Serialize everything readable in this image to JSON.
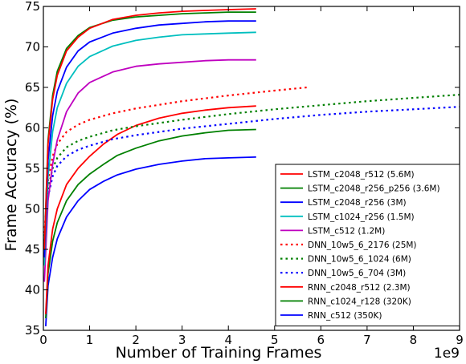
{
  "chart_data": {
    "type": "line",
    "title": "",
    "xlabel": "Number of Training Frames",
    "ylabel": "Frame Accuracy (%)",
    "x_multiplier_label": "1e9",
    "xlim": [
      0,
      9
    ],
    "ylim": [
      35,
      75
    ],
    "x_ticks": [
      0,
      1,
      2,
      3,
      4,
      5,
      6,
      7,
      8,
      9
    ],
    "y_ticks": [
      35,
      40,
      45,
      50,
      55,
      60,
      65,
      70,
      75
    ],
    "grid": false,
    "legend_position": "lower-right",
    "series": [
      {
        "name": "LSTM_c2048_r512 (5.6M)",
        "color": "#ff0000",
        "style": "solid",
        "x": [
          0.02,
          0.1,
          0.2,
          0.3,
          0.5,
          0.75,
          1.0,
          1.5,
          2.0,
          2.5,
          3.0,
          3.5,
          4.0,
          4.6
        ],
        "y": [
          45,
          58,
          63.5,
          66.5,
          69.5,
          71.2,
          72.3,
          73.4,
          73.9,
          74.2,
          74.4,
          74.5,
          74.6,
          74.7
        ]
      },
      {
        "name": "LSTM_c2048_r256_p256 (3.6M)",
        "color": "#008000",
        "style": "solid",
        "x": [
          0.02,
          0.1,
          0.2,
          0.3,
          0.5,
          0.75,
          1.0,
          1.5,
          2.0,
          2.5,
          3.0,
          3.5,
          4.0,
          4.6
        ],
        "y": [
          45,
          58.5,
          64,
          67,
          69.8,
          71.4,
          72.4,
          73.3,
          73.7,
          73.9,
          74.1,
          74.2,
          74.3,
          74.3
        ]
      },
      {
        "name": "LSTM_c2048_r256 (3M)",
        "color": "#0000ff",
        "style": "solid",
        "x": [
          0.02,
          0.1,
          0.2,
          0.3,
          0.5,
          0.75,
          1.0,
          1.5,
          2.0,
          2.5,
          3.0,
          3.5,
          4.0,
          4.6
        ],
        "y": [
          44,
          56,
          61.5,
          64.5,
          67.5,
          69.5,
          70.6,
          71.7,
          72.3,
          72.7,
          72.9,
          73.1,
          73.2,
          73.2
        ]
      },
      {
        "name": "LSTM_c1024_r256 (1.5M)",
        "color": "#00bfbf",
        "style": "solid",
        "x": [
          0.02,
          0.1,
          0.2,
          0.3,
          0.5,
          0.75,
          1.0,
          1.5,
          2.0,
          2.5,
          3.0,
          3.5,
          4.0,
          4.6
        ],
        "y": [
          43,
          54,
          59.5,
          62.5,
          65.5,
          67.6,
          68.8,
          70.1,
          70.8,
          71.2,
          71.5,
          71.6,
          71.7,
          71.8
        ]
      },
      {
        "name": "LSTM_c512 (1.2M)",
        "color": "#bf00bf",
        "style": "solid",
        "x": [
          0.02,
          0.1,
          0.2,
          0.3,
          0.5,
          0.75,
          1.0,
          1.5,
          2.0,
          2.5,
          3.0,
          3.5,
          4.0,
          4.6
        ],
        "y": [
          41,
          51,
          55.5,
          58.5,
          62,
          64.3,
          65.6,
          66.9,
          67.6,
          67.9,
          68.1,
          68.3,
          68.4,
          68.4
        ]
      },
      {
        "name": "DNN_10w5_6_2176 (25M)",
        "color": "#ff0000",
        "style": "dotted",
        "x": [
          0.02,
          0.1,
          0.2,
          0.3,
          0.5,
          0.75,
          1.0,
          1.5,
          2.0,
          3.0,
          4.0,
          5.0,
          5.7
        ],
        "y": [
          47,
          53.5,
          56.5,
          58,
          59.5,
          60.4,
          61,
          61.8,
          62.4,
          63.3,
          64,
          64.6,
          65
        ]
      },
      {
        "name": "DNN_10w5_6_1024 (6M)",
        "color": "#008000",
        "style": "dotted",
        "x": [
          0.02,
          0.1,
          0.2,
          0.3,
          0.5,
          0.75,
          1.0,
          1.5,
          2.0,
          3.0,
          4.0,
          5.0,
          6.0,
          7.0,
          8.0,
          9.0
        ],
        "y": [
          46,
          52.5,
          55,
          56.3,
          57.6,
          58.4,
          58.9,
          59.7,
          60.2,
          61,
          61.7,
          62.3,
          62.8,
          63.3,
          63.7,
          64.1
        ]
      },
      {
        "name": "DNN_10w5_6_704 (3M)",
        "color": "#0000ff",
        "style": "dotted",
        "x": [
          0.02,
          0.1,
          0.2,
          0.3,
          0.5,
          0.75,
          1.0,
          1.5,
          2.0,
          3.0,
          4.0,
          5.0,
          6.0,
          7.0,
          8.0,
          9.0
        ],
        "y": [
          45,
          51.5,
          54,
          55.3,
          56.5,
          57.3,
          57.8,
          58.6,
          59.1,
          59.9,
          60.5,
          61.1,
          61.6,
          62,
          62.3,
          62.6
        ]
      },
      {
        "name": "RNN_c2048_r512 (2.3M)",
        "color": "#ff0000",
        "style": "solid",
        "x": [
          0.05,
          0.1,
          0.2,
          0.3,
          0.5,
          0.75,
          1.0,
          1.3,
          1.6,
          2.0,
          2.5,
          3.0,
          3.5,
          4.0,
          4.6
        ],
        "y": [
          37,
          43,
          47.5,
          50,
          53,
          55,
          56.5,
          58,
          59.2,
          60.3,
          61.2,
          61.8,
          62.2,
          62.5,
          62.7
        ]
      },
      {
        "name": "RNN_c1024_r128 (320K)",
        "color": "#008000",
        "style": "solid",
        "x": [
          0.05,
          0.1,
          0.2,
          0.3,
          0.5,
          0.75,
          1.0,
          1.3,
          1.6,
          2.0,
          2.5,
          3.0,
          3.5,
          4.0,
          4.6
        ],
        "y": [
          36.5,
          42,
          46,
          48.3,
          51,
          53,
          54.3,
          55.5,
          56.6,
          57.5,
          58.4,
          59,
          59.4,
          59.7,
          59.8
        ]
      },
      {
        "name": "RNN_c512 (350K)",
        "color": "#0000ff",
        "style": "solid",
        "x": [
          0.05,
          0.1,
          0.2,
          0.3,
          0.5,
          0.75,
          1.0,
          1.3,
          1.6,
          2.0,
          2.5,
          3.0,
          3.5,
          4.0,
          4.6
        ],
        "y": [
          35.5,
          40.5,
          44,
          46.3,
          49,
          51,
          52.4,
          53.4,
          54.2,
          54.9,
          55.5,
          55.9,
          56.2,
          56.3,
          56.4
        ]
      }
    ]
  }
}
